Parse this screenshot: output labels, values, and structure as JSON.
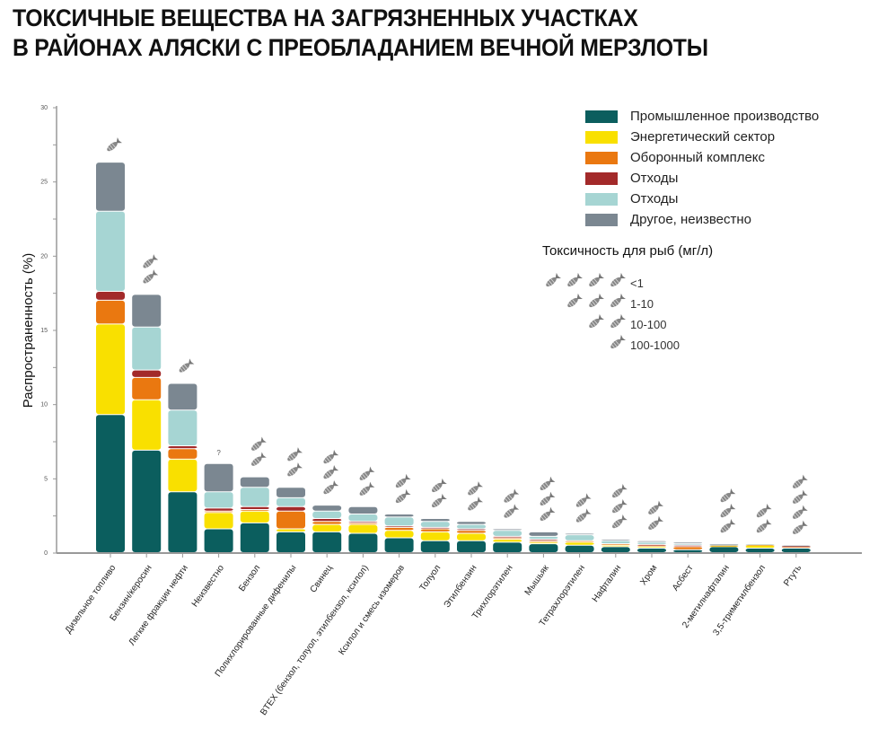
{
  "title_lines": [
    "ТОКСИЧНЫЕ ВЕЩЕСТВА НА ЗАГРЯЗНЕННЫХ УЧАСТКАХ",
    "В РАЙОНАХ АЛЯСКИ С ПРЕОБЛАДАНИЕМ ВЕЧНОЙ МЕРЗЛОТЫ"
  ],
  "chart_data": {
    "type": "bar",
    "stacked": true,
    "ylabel": "Распространенность (%)",
    "xlabel": "",
    "ylim": [
      0,
      30
    ],
    "yticks": [
      0,
      5,
      10,
      15,
      20,
      25,
      30
    ],
    "legend_position": "top-right",
    "categories": [
      "Дизельное топливо",
      "Бензин/керосин",
      "Легкие фракции нефти",
      "Неизвестно",
      "Бензол",
      "Полихлорированные дифенилы",
      "Свинец",
      "BTEX (бензол, толуол, этилбензол, ксилол)",
      "Ксилол и смесь изомеров",
      "Толуол",
      "Этилбензин",
      "Трихлорэтилен",
      "Мышьяк",
      "Тетрахлорэтилен",
      "Нафталин",
      "Хром",
      "Асбест",
      "2-метилнафталин",
      "3,5-триметилбензол",
      "Ртуть"
    ],
    "series": [
      {
        "name": "Промышленное производство",
        "color": "#0b5e5e",
        "values": [
          9.3,
          6.9,
          4.1,
          1.6,
          2.0,
          1.4,
          1.4,
          1.3,
          1.0,
          0.8,
          0.8,
          0.7,
          0.6,
          0.5,
          0.4,
          0.3,
          0.2,
          0.4,
          0.3,
          0.3
        ]
      },
      {
        "name": "Энергетический сектор",
        "color": "#f9e000",
        "values": [
          6.1,
          3.4,
          2.2,
          1.1,
          0.8,
          0.2,
          0.5,
          0.6,
          0.5,
          0.6,
          0.5,
          0.2,
          0.1,
          0.2,
          0.1,
          0.1,
          0.0,
          0.05,
          0.2,
          0.0
        ]
      },
      {
        "name": "Оборонный комплекс",
        "color": "#ea7810",
        "values": [
          1.6,
          1.5,
          0.7,
          0.1,
          0.1,
          1.2,
          0.2,
          0.1,
          0.2,
          0.2,
          0.2,
          0.1,
          0.1,
          0.1,
          0.1,
          0.1,
          0.2,
          0.05,
          0.05,
          0.1
        ]
      },
      {
        "name": "Отходы",
        "color": "#a32a2a",
        "values": [
          0.6,
          0.5,
          0.2,
          0.2,
          0.2,
          0.3,
          0.2,
          0.1,
          0.1,
          0.1,
          0.1,
          0.1,
          0.1,
          0.0,
          0.0,
          0.05,
          0.1,
          0.0,
          0.0,
          0.05
        ]
      },
      {
        "name": "Отходы ",
        "color": "#a6d5d3",
        "values": [
          5.4,
          2.9,
          2.4,
          1.1,
          1.3,
          0.6,
          0.5,
          0.5,
          0.6,
          0.4,
          0.3,
          0.4,
          0.2,
          0.4,
          0.2,
          0.15,
          0.1,
          0.05,
          0.05,
          0.0
        ]
      },
      {
        "name": "Другое, неизвестно",
        "color": "#7b8791",
        "values": [
          3.3,
          2.2,
          1.8,
          1.9,
          0.7,
          0.7,
          0.4,
          0.5,
          0.2,
          0.2,
          0.2,
          0.1,
          0.3,
          0.1,
          0.1,
          0.1,
          0.1,
          0.05,
          0.0,
          0.05
        ]
      }
    ],
    "fish_toxicity_counts": [
      1,
      2,
      1,
      null,
      2,
      2,
      3,
      2,
      2,
      2,
      2,
      2,
      3,
      2,
      3,
      2,
      0,
      3,
      2,
      4
    ],
    "unknown_marker": "?"
  },
  "legend": {
    "items": [
      {
        "label": "Промышленное производство",
        "color": "#0b5e5e"
      },
      {
        "label": "Энергетический сектор",
        "color": "#f9e000"
      },
      {
        "label": "Оборонный комплекс",
        "color": "#ea7810"
      },
      {
        "label": "Отходы",
        "color": "#a32a2a"
      },
      {
        "label": "Отходы",
        "color": "#a6d5d3"
      },
      {
        "label": "Другое, неизвестно",
        "color": "#7b8791"
      }
    ],
    "toxicity_title": "Токсичность для рыб (мг/л)",
    "toxicity_levels": [
      {
        "fish": 4,
        "label": "<1"
      },
      {
        "fish": 3,
        "label": "1-10"
      },
      {
        "fish": 2,
        "label": "10-100"
      },
      {
        "fish": 1,
        "label": "100-1000"
      }
    ]
  }
}
